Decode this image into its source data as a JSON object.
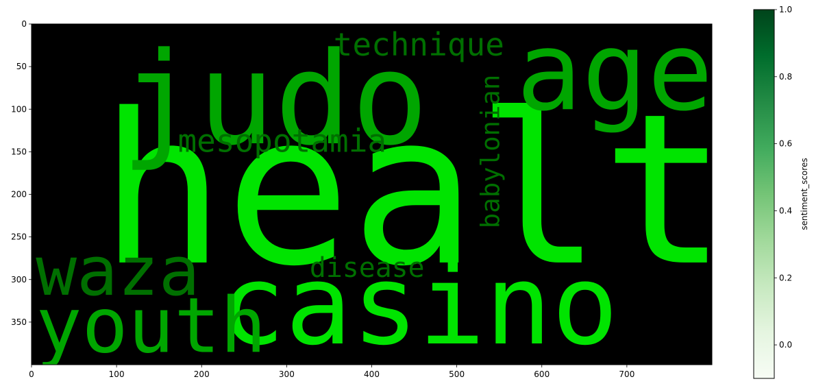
{
  "chart_data": {
    "type": "heatmap",
    "title": "",
    "xlabel": "",
    "ylabel": "",
    "x_range": [
      0,
      800
    ],
    "y_range": [
      0,
      400
    ],
    "y_inverted": true,
    "x_ticks": [
      "0",
      "100",
      "200",
      "300",
      "400",
      "500",
      "600",
      "700"
    ],
    "y_ticks": [
      "0",
      "50",
      "100",
      "150",
      "200",
      "250",
      "300",
      "350"
    ],
    "background_color": "#000000",
    "words": [
      {
        "text": "health",
        "color": "#00e400",
        "x": 80,
        "y": 280,
        "size": 245,
        "vertical": false
      },
      {
        "text": "judo",
        "color": "#00a600",
        "x": 105,
        "y": 140,
        "size": 150,
        "vertical": false
      },
      {
        "text": "age",
        "color": "#00a600",
        "x": 570,
        "y": 100,
        "size": 128,
        "vertical": false
      },
      {
        "text": "casino",
        "color": "#00e400",
        "x": 220,
        "y": 375,
        "size": 130,
        "vertical": false
      },
      {
        "text": "youth",
        "color": "#00a600",
        "x": 5,
        "y": 385,
        "size": 90,
        "vertical": false
      },
      {
        "text": "waza",
        "color": "#006f00",
        "x": 5,
        "y": 318,
        "size": 80,
        "vertical": false
      },
      {
        "text": "technique",
        "color": "#006f00",
        "x": 355,
        "y": 37,
        "size": 37,
        "vertical": false
      },
      {
        "text": "mesopotamia",
        "color": "#006f00",
        "x": 172,
        "y": 150,
        "size": 37,
        "vertical": false
      },
      {
        "text": "disease",
        "color": "#006f00",
        "x": 327,
        "y": 297,
        "size": 32,
        "vertical": false
      },
      {
        "text": "babylonian",
        "color": "#006f00",
        "x": 550,
        "y": 240,
        "size": 30,
        "vertical": true
      }
    ],
    "colorbar": {
      "label": "sentiment_scores",
      "colormap": "Greens",
      "min": -0.1,
      "max": 1.0,
      "ticks": [
        "0.0",
        "0.2",
        "0.4",
        "0.6",
        "0.8",
        "1.0"
      ],
      "tick_values": [
        0.0,
        0.2,
        0.4,
        0.6,
        0.8,
        1.0
      ],
      "color_low": "#f7fcf5",
      "color_high": "#00441b"
    }
  }
}
